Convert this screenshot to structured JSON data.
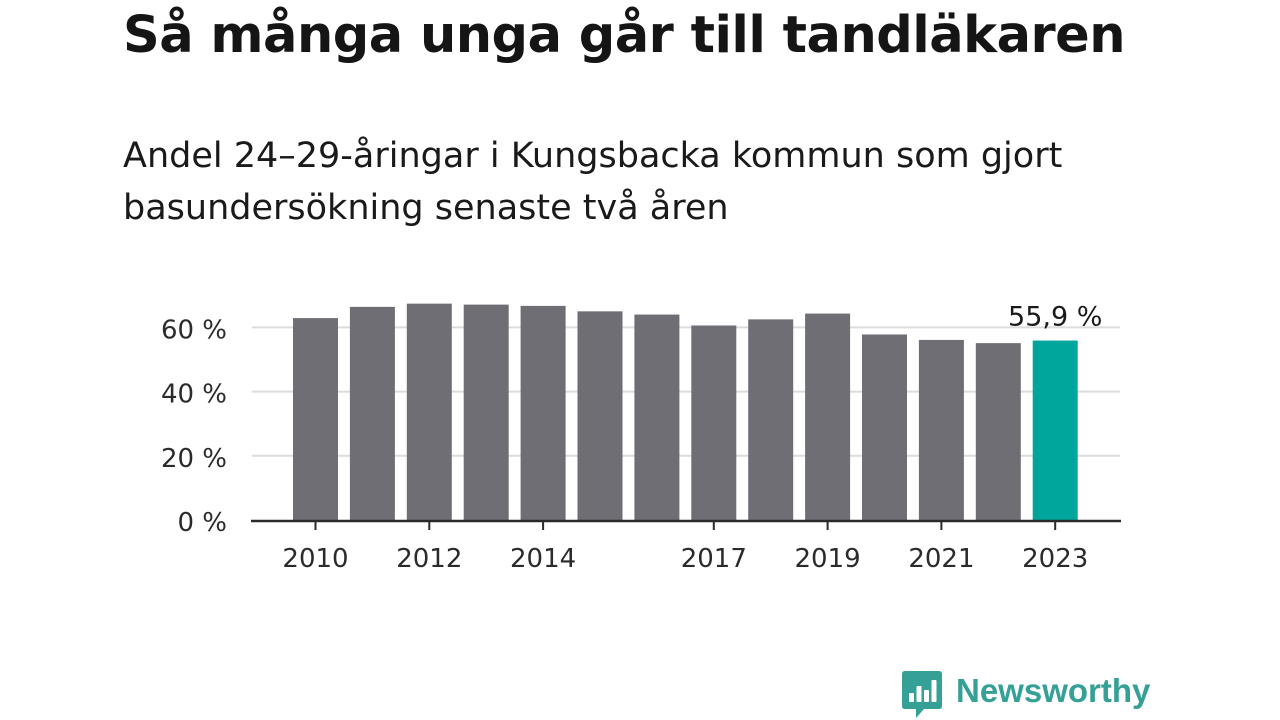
{
  "header": {
    "title": "Så många unga går till tandläkaren",
    "subtitle_line1": "Andel 24–29-åringar i Kungsbacka kommun som gjort",
    "subtitle_line2": "basundersökning senaste två åren"
  },
  "chart_data": {
    "type": "bar",
    "title": "Så många unga går till tandläkaren",
    "subtitle": "Andel 24–29-åringar i Kungsbacka kommun som gjort basundersökning senaste två åren",
    "categories": [
      "2010",
      "2011",
      "2012",
      "2013",
      "2014",
      "2015",
      "2016",
      "2017",
      "2018",
      "2019",
      "2020",
      "2021",
      "2022",
      "2023"
    ],
    "values": [
      62.9,
      66.4,
      67.4,
      67.1,
      66.7,
      65.0,
      64.0,
      60.6,
      62.5,
      64.3,
      57.8,
      56.1,
      55.1,
      55.9
    ],
    "x_tick_labels": [
      "2010",
      "2012",
      "2014",
      "2017",
      "2019",
      "2021",
      "2023"
    ],
    "y_ticks": [
      0,
      20,
      40,
      60
    ],
    "y_tick_labels": [
      "0 %",
      "20 %",
      "40 %",
      "60 %"
    ],
    "ylim": [
      0,
      70
    ],
    "grid": true,
    "bar_color": "#6f6e75",
    "highlight_color": "#00a59b",
    "highlight_category": "2023",
    "annotation": "55,9 %"
  },
  "footer": {
    "logo_text": "Newsworthy",
    "logo_icon": "bar-chart-speech-bubble-icon",
    "logo_color": "#35a095"
  }
}
